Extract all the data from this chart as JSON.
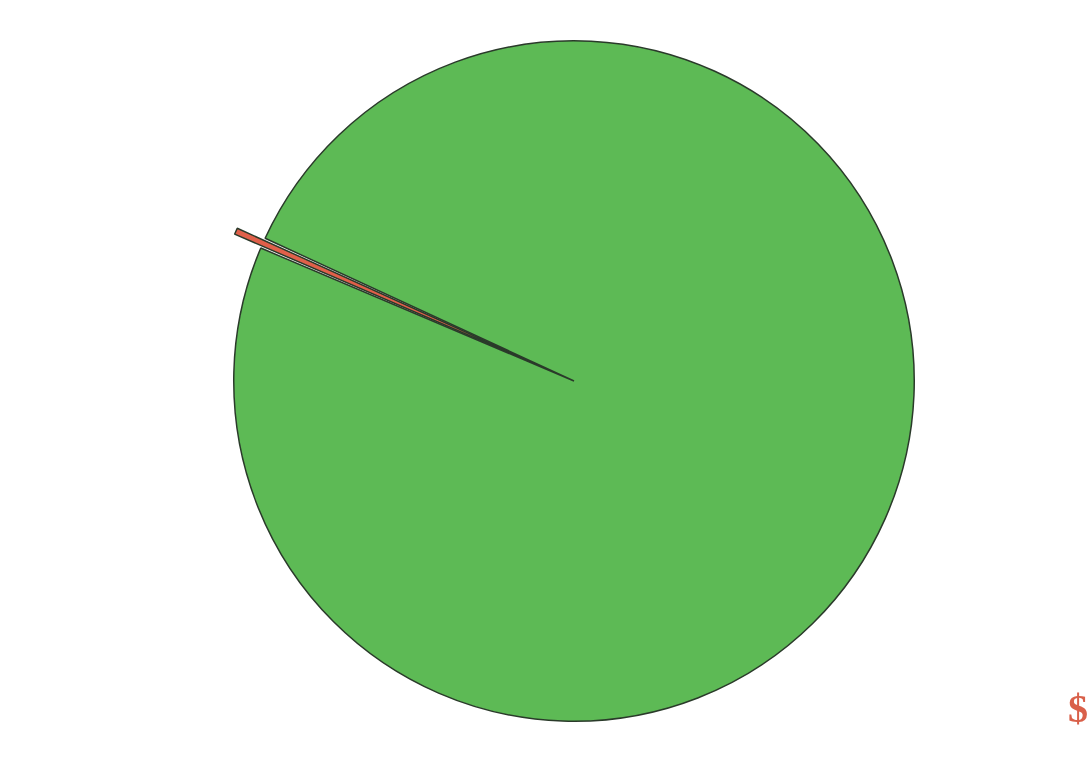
{
  "chart_data": {
    "type": "pie",
    "categories": [
      null,
      null
    ],
    "values": [
      0.5,
      99.5
    ],
    "colors": [
      "#e0604a",
      "#5dba55"
    ],
    "annotations": [
      "$"
    ]
  }
}
